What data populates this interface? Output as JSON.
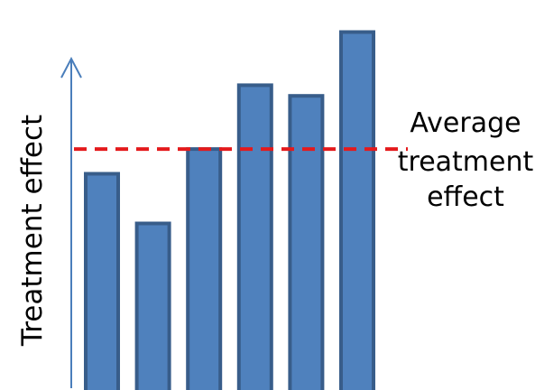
{
  "chart_data": {
    "type": "bar",
    "ylabel": "Treatment effect",
    "values": [
      6.0,
      4.6,
      6.7,
      8.5,
      8.2,
      10.0
    ],
    "ylim": [
      0,
      10.6
    ],
    "average_line": {
      "value": 6.7,
      "label_lines": [
        "Average",
        "treatment",
        "effect"
      ],
      "style": "dashed"
    },
    "grid": false,
    "legend": "none"
  },
  "colors": {
    "bar_fill": "#4f81bd",
    "bar_stroke": "#385d8a",
    "axis": "#4a7ebb",
    "average_line": "#e41a1c",
    "text": "#000000"
  }
}
